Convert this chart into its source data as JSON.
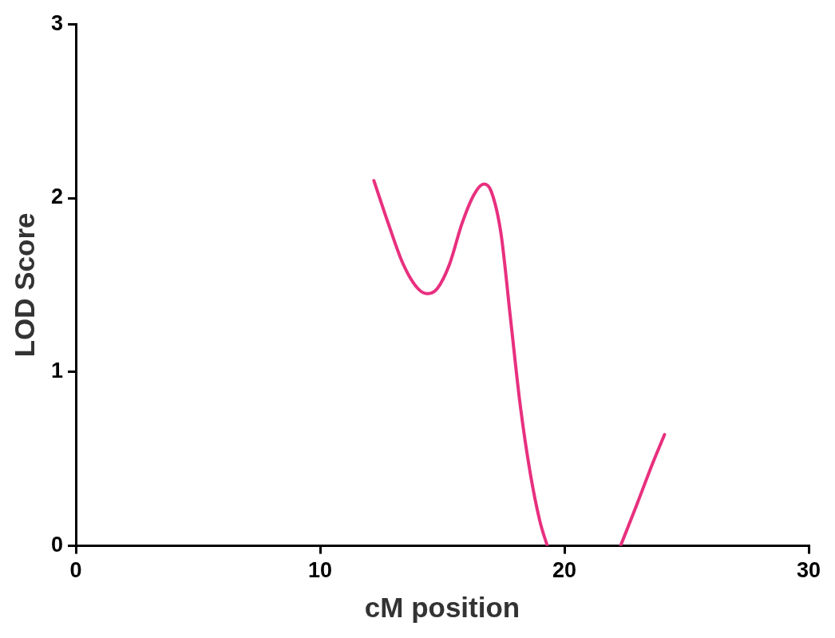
{
  "chart_data": {
    "type": "line",
    "xlabel": "cM position",
    "ylabel": "LOD Score",
    "xlim": [
      0,
      30
    ],
    "xticks": [
      0,
      10,
      20,
      30
    ],
    "ylim": [
      0,
      3
    ],
    "yticks": [
      0,
      1,
      2,
      3
    ],
    "grid": false,
    "legend": false,
    "marker": "none",
    "line_style": "solid",
    "series": [
      {
        "color": "#e8307f",
        "x": [
          12.2,
          12.8,
          13.4,
          14.0,
          14.4,
          14.8,
          15.3,
          15.8,
          16.3,
          16.7,
          17.0,
          17.4,
          17.8,
          18.2,
          18.6,
          19.0,
          19.3,
          20.8,
          22.3,
          23.0,
          23.6,
          24.1
        ],
        "values": [
          2.1,
          1.85,
          1.62,
          1.48,
          1.45,
          1.48,
          1.62,
          1.85,
          2.02,
          2.08,
          2.04,
          1.8,
          1.3,
          0.8,
          0.42,
          0.14,
          0,
          null,
          0,
          0.25,
          0.47,
          0.64
        ]
      }
    ]
  }
}
